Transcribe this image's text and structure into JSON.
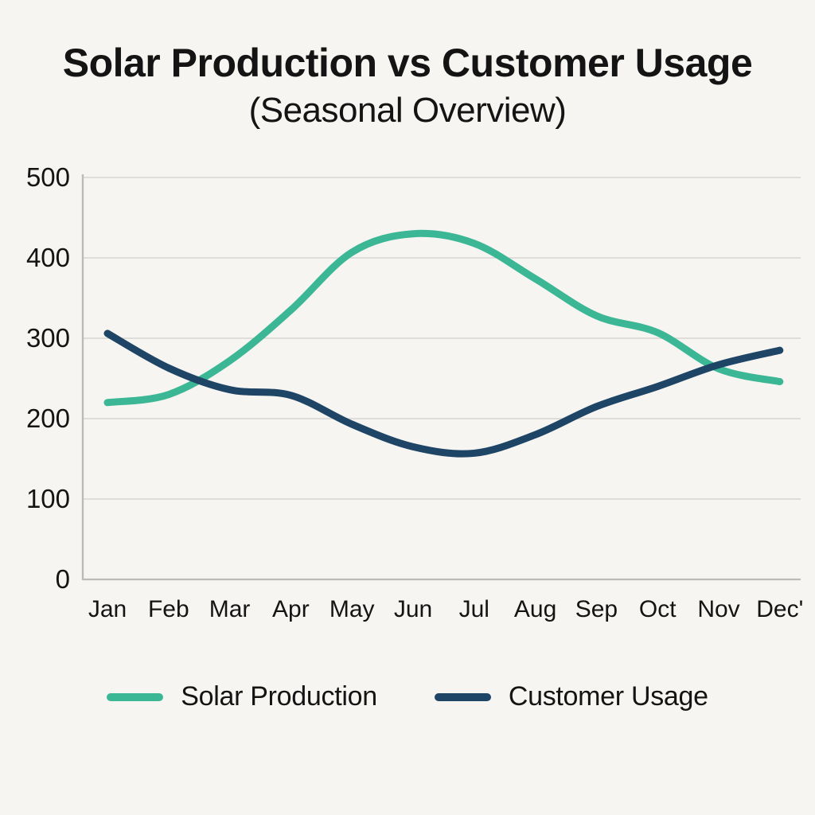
{
  "page": {
    "title": "Solar Production vs Customer Usage",
    "subtitle": "(Seasonal Overview)"
  },
  "chart_data": {
    "type": "line",
    "title": "Solar Production vs Customer Usage",
    "subtitle": "(Seasonal Overview)",
    "categories": [
      "Jan",
      "Feb",
      "Mar",
      "Apr",
      "May",
      "Jun",
      "Jul",
      "Aug",
      "Sep",
      "Oct",
      "Nov",
      "Dec'"
    ],
    "series": [
      {
        "name": "Solar Production",
        "color": "#3bb795",
        "values": [
          220,
          230,
          272,
          335,
          407,
          430,
          418,
          374,
          328,
          307,
          262,
          246
        ]
      },
      {
        "name": "Customer Usage",
        "color": "#1e4466",
        "values": [
          306,
          263,
          236,
          229,
          193,
          165,
          157,
          180,
          215,
          240,
          267,
          285
        ]
      }
    ],
    "xlabel": "",
    "ylabel": "",
    "ylim": [
      0,
      500
    ],
    "yticks": [
      0,
      100,
      200,
      300,
      400,
      500
    ],
    "grid": true,
    "legend_position": "bottom",
    "colors": {
      "background": "#f7f5f1",
      "grid": "#d7d5d1",
      "axis": "#bdbbb7",
      "text": "#141414"
    }
  }
}
